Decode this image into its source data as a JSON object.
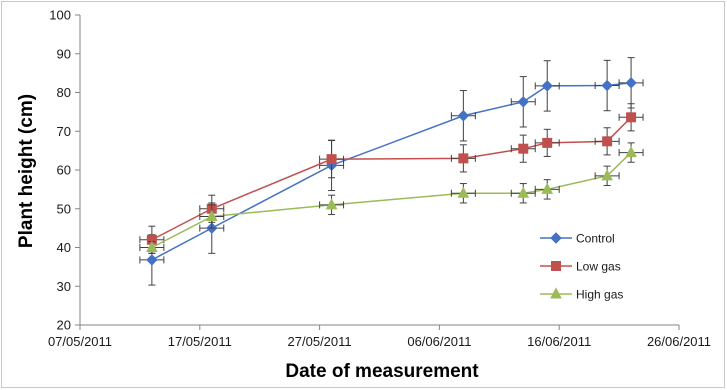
{
  "chart_data": {
    "type": "line",
    "title": "",
    "xlabel": "Date of measurement",
    "ylabel": "Plant height (cm)",
    "xlim": [
      "2011-05-07",
      "2011-06-26"
    ],
    "ylim": [
      20,
      100
    ],
    "x_ticks": [
      "07/05/2011",
      "17/05/2011",
      "27/05/2011",
      "06/06/2011",
      "16/06/2011",
      "26/06/2011"
    ],
    "y_ticks": [
      20,
      30,
      40,
      50,
      60,
      70,
      80,
      90,
      100
    ],
    "grid": false,
    "legend_position": "right",
    "x_error_days": 1,
    "series": [
      {
        "name": "Control",
        "color": "#4472c4",
        "marker": "diamond",
        "points": [
          {
            "x": "2011-05-13",
            "y": 36.8,
            "yerr": 6.5
          },
          {
            "x": "2011-05-18",
            "y": 45.0,
            "yerr": 6.5
          },
          {
            "x": "2011-05-28",
            "y": 61.2,
            "yerr": 6.5
          },
          {
            "x": "2011-06-08",
            "y": 74.0,
            "yerr": 6.5
          },
          {
            "x": "2011-06-13",
            "y": 77.6,
            "yerr": 6.5
          },
          {
            "x": "2011-06-15",
            "y": 81.7,
            "yerr": 6.5
          },
          {
            "x": "2011-06-20",
            "y": 81.8,
            "yerr": 6.5
          },
          {
            "x": "2011-06-22",
            "y": 82.5,
            "yerr": 6.5
          }
        ]
      },
      {
        "name": "Low gas",
        "color": "#c0504d",
        "marker": "square",
        "points": [
          {
            "x": "2011-05-13",
            "y": 42.0,
            "yerr": 3.5
          },
          {
            "x": "2011-05-18",
            "y": 50.0,
            "yerr": 3.5
          },
          {
            "x": "2011-05-28",
            "y": 62.8,
            "yerr": 4.8
          },
          {
            "x": "2011-06-08",
            "y": 63.0,
            "yerr": 3.5
          },
          {
            "x": "2011-06-13",
            "y": 65.5,
            "yerr": 3.5
          },
          {
            "x": "2011-06-15",
            "y": 67.0,
            "yerr": 3.5
          },
          {
            "x": "2011-06-20",
            "y": 67.4,
            "yerr": 3.5
          },
          {
            "x": "2011-06-22",
            "y": 73.6,
            "yerr": 3.5
          }
        ]
      },
      {
        "name": "High gas",
        "color": "#9bbb59",
        "marker": "triangle",
        "points": [
          {
            "x": "2011-05-13",
            "y": 40.0,
            "yerr": 1.5
          },
          {
            "x": "2011-05-18",
            "y": 48.0,
            "yerr": 3.0
          },
          {
            "x": "2011-05-28",
            "y": 51.0,
            "yerr": 2.5
          },
          {
            "x": "2011-06-08",
            "y": 54.0,
            "yerr": 2.5
          },
          {
            "x": "2011-06-13",
            "y": 54.0,
            "yerr": 2.5
          },
          {
            "x": "2011-06-15",
            "y": 55.0,
            "yerr": 2.5
          },
          {
            "x": "2011-06-20",
            "y": 58.5,
            "yerr": 2.5
          },
          {
            "x": "2011-06-22",
            "y": 64.5,
            "yerr": 2.5
          }
        ]
      }
    ]
  }
}
